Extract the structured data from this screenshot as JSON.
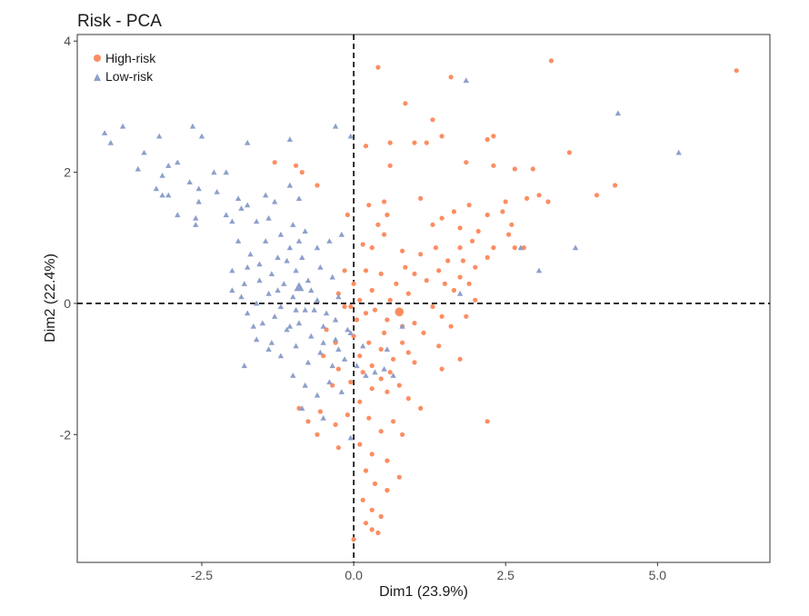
{
  "chart_data": {
    "type": "scatter",
    "title": "Risk - PCA",
    "xlabel": "Dim1 (23.9%)",
    "ylabel": "Dim2 (22.4%)",
    "xlim": [
      -4.55,
      6.85
    ],
    "ylim": [
      -3.95,
      4.1
    ],
    "x_ticks": [
      -2.5,
      0,
      2.5,
      5
    ],
    "x_tick_labels": [
      "-2.5",
      "0.0",
      "2.5",
      "5.0"
    ],
    "y_ticks": [
      -2,
      0,
      2,
      4
    ],
    "y_tick_labels": [
      "-2",
      "0",
      "2",
      "4"
    ],
    "reference_lines": {
      "x": 0,
      "y": 0,
      "style": "dashed"
    },
    "grid": false,
    "legend_position": "top-left",
    "series": [
      {
        "name": "High-risk",
        "marker": "circle",
        "color": "#FC8D62",
        "centroid": [
          0.75,
          -0.13
        ],
        "points": [
          [
            0.4,
            3.6
          ],
          [
            1.6,
            3.45
          ],
          [
            3.25,
            3.7
          ],
          [
            6.3,
            3.55
          ],
          [
            0.85,
            3.05
          ],
          [
            1.3,
            2.8
          ],
          [
            1.45,
            2.55
          ],
          [
            1.2,
            2.45
          ],
          [
            2.3,
            2.55
          ],
          [
            2.2,
            2.5
          ],
          [
            0.2,
            2.4
          ],
          [
            0.6,
            2.45
          ],
          [
            1.0,
            2.45
          ],
          [
            -1.3,
            2.15
          ],
          [
            -0.95,
            2.1
          ],
          [
            -0.85,
            2.0
          ],
          [
            0.6,
            2.1
          ],
          [
            1.85,
            2.15
          ],
          [
            2.3,
            2.1
          ],
          [
            2.65,
            2.05
          ],
          [
            2.95,
            2.05
          ],
          [
            3.55,
            2.3
          ],
          [
            4.0,
            1.65
          ],
          [
            4.3,
            1.8
          ],
          [
            1.1,
            1.6
          ],
          [
            0.5,
            1.55
          ],
          [
            2.5,
            1.55
          ],
          [
            2.85,
            1.6
          ],
          [
            3.05,
            1.65
          ],
          [
            3.2,
            1.55
          ],
          [
            -0.6,
            1.8
          ],
          [
            0.25,
            1.5
          ],
          [
            1.65,
            1.4
          ],
          [
            1.9,
            1.5
          ],
          [
            2.2,
            1.35
          ],
          [
            2.45,
            1.4
          ],
          [
            2.6,
            1.2
          ],
          [
            0.4,
            1.2
          ],
          [
            0.55,
            1.35
          ],
          [
            -0.1,
            1.35
          ],
          [
            1.3,
            1.2
          ],
          [
            1.45,
            1.3
          ],
          [
            1.75,
            1.15
          ],
          [
            1.95,
            0.95
          ],
          [
            2.05,
            1.1
          ],
          [
            2.3,
            0.85
          ],
          [
            2.55,
            1.05
          ],
          [
            2.65,
            0.85
          ],
          [
            2.8,
            0.85
          ],
          [
            0.15,
            0.9
          ],
          [
            0.3,
            0.85
          ],
          [
            0.5,
            1.05
          ],
          [
            0.8,
            0.8
          ],
          [
            1.1,
            0.75
          ],
          [
            1.35,
            0.85
          ],
          [
            1.55,
            0.65
          ],
          [
            1.75,
            0.85
          ],
          [
            1.8,
            0.65
          ],
          [
            2.0,
            0.55
          ],
          [
            2.2,
            0.7
          ],
          [
            0.2,
            0.5
          ],
          [
            0.45,
            0.45
          ],
          [
            0.7,
            0.3
          ],
          [
            0.85,
            0.55
          ],
          [
            1.0,
            0.45
          ],
          [
            1.2,
            0.35
          ],
          [
            1.4,
            0.5
          ],
          [
            1.5,
            0.3
          ],
          [
            1.65,
            0.2
          ],
          [
            1.75,
            0.4
          ],
          [
            1.9,
            0.3
          ],
          [
            2.0,
            0.05
          ],
          [
            -0.15,
            0.5
          ],
          [
            0.0,
            0.3
          ],
          [
            0.1,
            0.05
          ],
          [
            0.3,
            0.2
          ],
          [
            0.6,
            0.05
          ],
          [
            0.9,
            0.15
          ],
          [
            1.3,
            -0.05
          ],
          [
            1.45,
            -0.2
          ],
          [
            1.6,
            -0.35
          ],
          [
            1.85,
            -0.2
          ],
          [
            -0.25,
            0.15
          ],
          [
            -0.05,
            -0.05
          ],
          [
            0.2,
            -0.15
          ],
          [
            0.35,
            -0.1
          ],
          [
            0.55,
            -0.25
          ],
          [
            0.8,
            -0.35
          ],
          [
            1.0,
            -0.3
          ],
          [
            1.15,
            -0.45
          ],
          [
            1.4,
            -0.65
          ],
          [
            1.75,
            -0.85
          ],
          [
            -0.45,
            -0.4
          ],
          [
            -0.3,
            -0.6
          ],
          [
            0.0,
            -0.5
          ],
          [
            0.1,
            -0.8
          ],
          [
            0.25,
            -0.6
          ],
          [
            0.45,
            -0.7
          ],
          [
            0.65,
            -0.85
          ],
          [
            0.8,
            -0.6
          ],
          [
            1.0,
            -0.9
          ],
          [
            1.45,
            -1.0
          ],
          [
            -0.5,
            -0.8
          ],
          [
            -0.25,
            -1.0
          ],
          [
            -0.05,
            -1.2
          ],
          [
            0.15,
            -1.05
          ],
          [
            0.3,
            -1.3
          ],
          [
            0.45,
            -1.15
          ],
          [
            0.55,
            -1.35
          ],
          [
            0.75,
            -1.25
          ],
          [
            0.9,
            -1.45
          ],
          [
            1.1,
            -1.6
          ],
          [
            -0.9,
            -1.6
          ],
          [
            -0.75,
            -1.8
          ],
          [
            -0.55,
            -1.65
          ],
          [
            -0.3,
            -1.85
          ],
          [
            -0.1,
            -1.7
          ],
          [
            0.1,
            -1.5
          ],
          [
            0.25,
            -1.75
          ],
          [
            0.45,
            -1.95
          ],
          [
            0.65,
            -1.8
          ],
          [
            0.8,
            -2.0
          ],
          [
            -0.6,
            -2.0
          ],
          [
            -0.25,
            -2.2
          ],
          [
            0.1,
            -2.15
          ],
          [
            0.3,
            -2.3
          ],
          [
            0.55,
            -2.4
          ],
          [
            0.75,
            -2.65
          ],
          [
            0.2,
            -2.55
          ],
          [
            0.35,
            -2.75
          ],
          [
            0.55,
            -2.85
          ],
          [
            0.15,
            -3.0
          ],
          [
            0.3,
            -3.15
          ],
          [
            0.45,
            -3.25
          ],
          [
            0.2,
            -3.35
          ],
          [
            0.3,
            -3.45
          ],
          [
            0.0,
            -3.6
          ],
          [
            0.4,
            -3.5
          ],
          [
            2.2,
            -1.8
          ],
          [
            0.75,
            -0.1
          ],
          [
            -0.15,
            -0.05
          ],
          [
            0.05,
            -0.25
          ],
          [
            0.3,
            -0.95
          ],
          [
            0.6,
            -1.05
          ],
          [
            0.5,
            -0.45
          ],
          [
            0.9,
            -0.75
          ],
          [
            -0.35,
            -1.25
          ]
        ]
      },
      {
        "name": "Low-risk",
        "marker": "triangle",
        "color": "#8DA0CB",
        "centroid": [
          -0.9,
          0.25
        ],
        "points": [
          [
            1.85,
            3.4
          ],
          [
            4.35,
            2.9
          ],
          [
            5.35,
            2.3
          ],
          [
            -4.1,
            2.6
          ],
          [
            -4.0,
            2.45
          ],
          [
            -3.8,
            2.7
          ],
          [
            -3.2,
            2.55
          ],
          [
            -2.65,
            2.7
          ],
          [
            -2.5,
            2.55
          ],
          [
            -1.75,
            2.45
          ],
          [
            -1.05,
            2.5
          ],
          [
            -0.3,
            2.7
          ],
          [
            -0.05,
            2.55
          ],
          [
            -3.55,
            2.05
          ],
          [
            -3.15,
            1.95
          ],
          [
            -3.05,
            2.1
          ],
          [
            -2.9,
            2.15
          ],
          [
            -3.25,
            1.75
          ],
          [
            -3.05,
            1.65
          ],
          [
            -2.7,
            1.85
          ],
          [
            -2.55,
            1.75
          ],
          [
            -2.3,
            2.0
          ],
          [
            -2.1,
            2.0
          ],
          [
            -3.15,
            1.65
          ],
          [
            -2.9,
            1.35
          ],
          [
            -2.6,
            1.3
          ],
          [
            -2.25,
            1.7
          ],
          [
            -1.9,
            1.6
          ],
          [
            -1.75,
            1.5
          ],
          [
            -1.45,
            1.65
          ],
          [
            -1.3,
            1.55
          ],
          [
            -1.05,
            1.8
          ],
          [
            -0.9,
            1.6
          ],
          [
            -2.6,
            1.2
          ],
          [
            -2.1,
            1.35
          ],
          [
            -1.85,
            1.45
          ],
          [
            -1.6,
            1.25
          ],
          [
            -1.4,
            1.3
          ],
          [
            -1.2,
            1.05
          ],
          [
            -1.0,
            1.2
          ],
          [
            -0.8,
            1.1
          ],
          [
            -1.9,
            0.95
          ],
          [
            -1.7,
            0.75
          ],
          [
            -1.45,
            0.95
          ],
          [
            -1.25,
            0.7
          ],
          [
            -1.05,
            0.85
          ],
          [
            -0.85,
            0.7
          ],
          [
            -0.6,
            0.85
          ],
          [
            -0.4,
            0.95
          ],
          [
            -0.2,
            1.05
          ],
          [
            -2.0,
            0.5
          ],
          [
            -1.75,
            0.55
          ],
          [
            -1.55,
            0.35
          ],
          [
            -1.35,
            0.45
          ],
          [
            -1.15,
            0.3
          ],
          [
            -0.95,
            0.5
          ],
          [
            -0.75,
            0.35
          ],
          [
            -0.55,
            0.55
          ],
          [
            -0.35,
            0.4
          ],
          [
            -2.0,
            0.2
          ],
          [
            -1.85,
            0.1
          ],
          [
            -1.6,
            0.0
          ],
          [
            -1.4,
            0.15
          ],
          [
            -1.2,
            -0.05
          ],
          [
            -1.0,
            0.1
          ],
          [
            -0.8,
            -0.1
          ],
          [
            -0.6,
            0.05
          ],
          [
            -0.45,
            -0.15
          ],
          [
            -0.25,
            0.1
          ],
          [
            -1.75,
            -0.15
          ],
          [
            -1.5,
            -0.3
          ],
          [
            -1.3,
            -0.2
          ],
          [
            -1.1,
            -0.4
          ],
          [
            -0.9,
            -0.3
          ],
          [
            -0.7,
            -0.5
          ],
          [
            -0.5,
            -0.35
          ],
          [
            -0.3,
            -0.55
          ],
          [
            -0.1,
            -0.4
          ],
          [
            -1.6,
            -0.55
          ],
          [
            -1.4,
            -0.7
          ],
          [
            -1.2,
            -0.8
          ],
          [
            -0.95,
            -0.65
          ],
          [
            -0.75,
            -0.9
          ],
          [
            -0.55,
            -0.75
          ],
          [
            -0.35,
            -0.95
          ],
          [
            -0.15,
            -0.85
          ],
          [
            0.05,
            -0.95
          ],
          [
            0.2,
            -1.1
          ],
          [
            0.35,
            -1.05
          ],
          [
            0.5,
            -1.0
          ],
          [
            0.65,
            -1.1
          ],
          [
            -1.8,
            -0.95
          ],
          [
            -1.0,
            -1.1
          ],
          [
            -0.8,
            -1.25
          ],
          [
            -0.6,
            -1.4
          ],
          [
            -0.4,
            -1.2
          ],
          [
            -0.2,
            -1.35
          ],
          [
            -0.85,
            -1.6
          ],
          [
            -0.5,
            -1.75
          ],
          [
            -0.05,
            -2.05
          ],
          [
            -1.8,
            0.3
          ],
          [
            -1.1,
            0.65
          ],
          [
            -0.95,
            -0.1
          ],
          [
            -0.3,
            -0.25
          ],
          [
            -0.05,
            -0.45
          ],
          [
            1.75,
            0.15
          ],
          [
            3.05,
            0.5
          ],
          [
            3.65,
            0.85
          ],
          [
            2.75,
            0.85
          ],
          [
            -0.7,
            0.2
          ],
          [
            -0.65,
            -0.1
          ],
          [
            -1.35,
            -0.6
          ],
          [
            -1.55,
            0.6
          ],
          [
            -0.25,
            -0.7
          ],
          [
            0.55,
            -0.7
          ],
          [
            0.8,
            -0.35
          ],
          [
            0.15,
            -0.65
          ],
          [
            -1.05,
            -0.35
          ],
          [
            -2.55,
            1.55
          ],
          [
            -3.45,
            2.3
          ],
          [
            -2.0,
            1.25
          ],
          [
            -1.25,
            0.2
          ],
          [
            -0.5,
            -0.6
          ],
          [
            -0.9,
            0.95
          ],
          [
            -1.65,
            -0.35
          ]
        ]
      }
    ]
  }
}
